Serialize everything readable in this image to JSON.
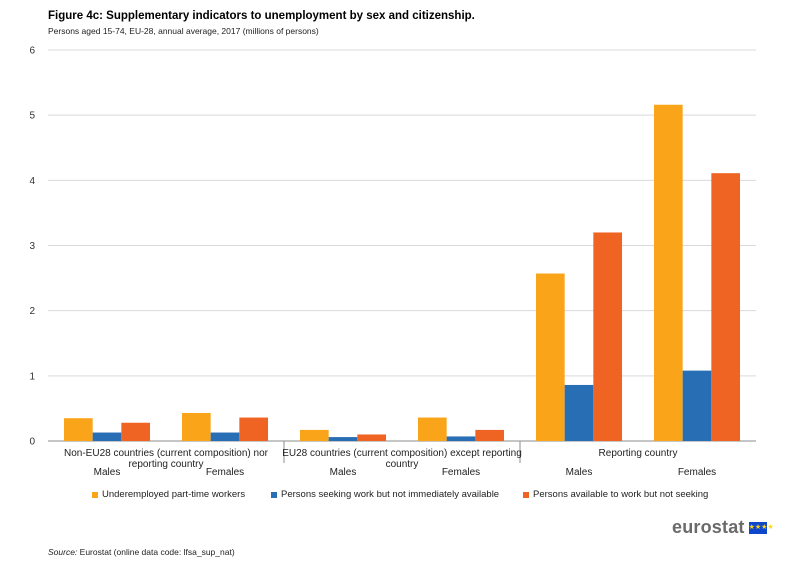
{
  "header": {
    "title": "Figure 4c: Supplementary indicators to unemployment by sex and citizenship.",
    "subtitle": "Persons aged 15-74, EU-28, annual average, 2017 (millions of persons)"
  },
  "chart_data": {
    "type": "bar",
    "title": "Figure 4c: Supplementary indicators to unemployment by sex and citizenship.",
    "subtitle": "Persons aged 15-74, EU-28, annual average, 2017 (millions of persons)",
    "xlabel": "",
    "ylabel": "",
    "ylim": [
      0,
      6
    ],
    "yticks": [
      "0",
      "1",
      "2",
      "3",
      "4",
      "5",
      "6"
    ],
    "grid": true,
    "legend_position": "bottom",
    "groups": [
      {
        "label": "Non-EU28 countries (current composition) nor reporting country",
        "label_lines": [
          "Non-EU28 countries (current composition) nor",
          "reporting country"
        ]
      },
      {
        "label": "EU28 countries (current composition) except reporting country",
        "label_lines": [
          "EU28 countries (current composition) except reporting",
          "country"
        ]
      },
      {
        "label": "Reporting country",
        "label_lines": [
          "Reporting country"
        ]
      }
    ],
    "categories": [
      "Males",
      "Females",
      "Males",
      "Females",
      "Males",
      "Females"
    ],
    "series": [
      {
        "name": "Underemployed part-time workers",
        "color": "#faa519",
        "values": [
          0.35,
          0.43,
          0.17,
          0.36,
          2.57,
          5.16
        ]
      },
      {
        "name": "Persons seeking work but not immediately available",
        "color": "#286eb4",
        "values": [
          0.13,
          0.13,
          0.06,
          0.07,
          0.86,
          1.08
        ]
      },
      {
        "name": "Persons available to work but not seeking",
        "color": "#f06423",
        "values": [
          0.28,
          0.36,
          0.1,
          0.17,
          3.2,
          4.11
        ]
      }
    ]
  },
  "footer": {
    "source_label": "Source:",
    "source_text": " Eurostat (online data code: lfsa_sup_nat)",
    "logo_text": "eurostat",
    "flag_stars": "★★★★"
  }
}
